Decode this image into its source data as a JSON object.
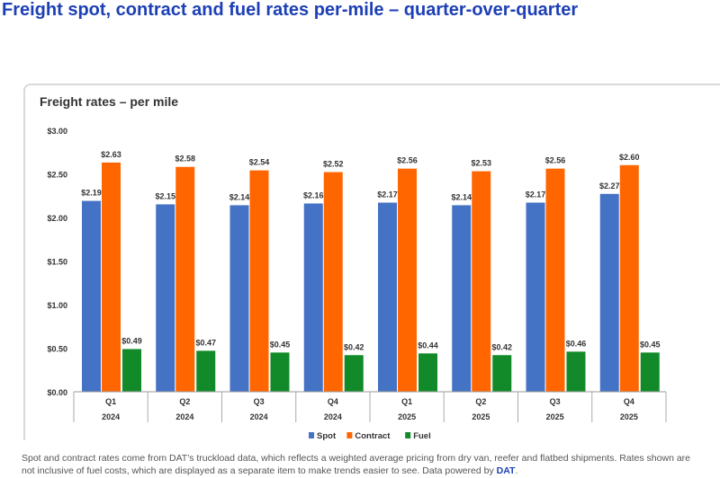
{
  "page_title": "Freight spot, contract and fuel rates per-mile – quarter-over-quarter",
  "footnote": "Spot and contract rates come from DAT's truckload data, which reflects a weighted average pricing from dry van, reefer and flatbed shipments. Rates shown are not inclusive of fuel costs, which are displayed as a separate item to make trends easier to see. Data powered by ",
  "footnote_brand": "DAT",
  "footnote_end": ".",
  "chart_data": {
    "type": "bar",
    "title": "Freight rates – per mile",
    "categories": [
      [
        "Q1",
        "2024"
      ],
      [
        "Q2",
        "2024"
      ],
      [
        "Q3",
        "2024"
      ],
      [
        "Q4",
        "2024"
      ],
      [
        "Q1",
        "2025"
      ],
      [
        "Q2",
        "2025"
      ],
      [
        "Q3",
        "2025"
      ],
      [
        "Q4",
        "2025"
      ]
    ],
    "series": [
      {
        "name": "Spot",
        "color": "#4472c4",
        "values": [
          2.19,
          2.15,
          2.14,
          2.16,
          2.17,
          2.14,
          2.17,
          2.27
        ]
      },
      {
        "name": "Contract",
        "color": "#ff6600",
        "values": [
          2.63,
          2.58,
          2.54,
          2.52,
          2.56,
          2.53,
          2.56,
          2.6
        ]
      },
      {
        "name": "Fuel",
        "color": "#128a2a",
        "values": [
          0.49,
          0.47,
          0.45,
          0.42,
          0.44,
          0.42,
          0.46,
          0.45
        ]
      }
    ],
    "yticks": [
      "$0.00",
      "$0.50",
      "$1.00",
      "$1.50",
      "$2.00",
      "$2.50",
      "$3.00"
    ],
    "ylim": [
      0,
      3
    ],
    "grid": false,
    "legend": "bottom",
    "data_labels": true
  }
}
